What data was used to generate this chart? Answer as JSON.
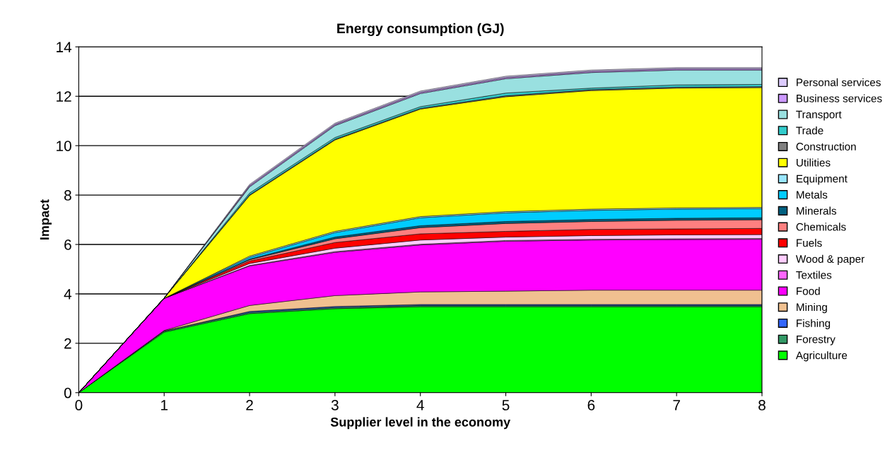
{
  "chart_data": {
    "type": "area",
    "stacked": true,
    "title": "Energy consumption (GJ)",
    "xlabel": "Supplier level in the economy",
    "ylabel": "Impact",
    "x": [
      0,
      1,
      2,
      3,
      4,
      5,
      6,
      7,
      8
    ],
    "xlim": [
      0,
      8
    ],
    "xticks": [
      0,
      1,
      2,
      3,
      4,
      5,
      6,
      7,
      8
    ],
    "ylim": [
      0,
      14
    ],
    "yticks": [
      0,
      2,
      4,
      6,
      8,
      10,
      12,
      14
    ],
    "grid": "y",
    "legend": "right",
    "series": [
      {
        "name": "Agriculture",
        "color": "#00ff00",
        "values": [
          0,
          2.45,
          3.2,
          3.4,
          3.48,
          3.48,
          3.48,
          3.48,
          3.48
        ]
      },
      {
        "name": "Forestry",
        "color": "#339966",
        "values": [
          0,
          0.05,
          0.05,
          0.05,
          0.05,
          0.05,
          0.05,
          0.05,
          0.05
        ]
      },
      {
        "name": "Fishing",
        "color": "#3366ff",
        "values": [
          0,
          0,
          0.04,
          0.04,
          0.04,
          0.04,
          0.04,
          0.04,
          0.04
        ]
      },
      {
        "name": "Mining",
        "color": "#f0c090",
        "values": [
          0,
          0.02,
          0.24,
          0.44,
          0.51,
          0.54,
          0.58,
          0.58,
          0.58
        ]
      },
      {
        "name": "Food",
        "color": "#ff00ff",
        "values": [
          0,
          1.3,
          1.6,
          1.75,
          1.9,
          2.02,
          2.03,
          2.05,
          2.06
        ]
      },
      {
        "name": "Textiles",
        "color": "#ff66ff",
        "values": [
          0,
          0,
          0.02,
          0.03,
          0.03,
          0.03,
          0.03,
          0.03,
          0.03
        ]
      },
      {
        "name": "Wood & paper",
        "color": "#ffccff",
        "values": [
          0,
          0,
          0.08,
          0.14,
          0.17,
          0.14,
          0.15,
          0.16,
          0.16
        ]
      },
      {
        "name": "Fuels",
        "color": "#ff0000",
        "values": [
          0,
          0,
          0.1,
          0.23,
          0.25,
          0.23,
          0.25,
          0.24,
          0.25
        ]
      },
      {
        "name": "Chemicals",
        "color": "#ff8080",
        "values": [
          0,
          0,
          0.05,
          0.15,
          0.25,
          0.32,
          0.32,
          0.35,
          0.35
        ]
      },
      {
        "name": "Minerals",
        "color": "#006080",
        "values": [
          0,
          0,
          0.03,
          0.07,
          0.08,
          0.08,
          0.08,
          0.08,
          0.08
        ]
      },
      {
        "name": "Metals",
        "color": "#00ccff",
        "values": [
          0,
          0,
          0.07,
          0.18,
          0.32,
          0.35,
          0.37,
          0.37,
          0.37
        ]
      },
      {
        "name": "Equipment",
        "color": "#99e6ff",
        "values": [
          0,
          0,
          0.05,
          0.05,
          0.05,
          0.05,
          0.05,
          0.05,
          0.05
        ]
      },
      {
        "name": "Utilities",
        "color": "#ffff00",
        "values": [
          0,
          0.01,
          2.45,
          3.7,
          4.35,
          4.65,
          4.8,
          4.85,
          4.85
        ]
      },
      {
        "name": "Construction",
        "color": "#808080",
        "values": [
          0,
          0,
          0.03,
          0.03,
          0.03,
          0.04,
          0.04,
          0.04,
          0.04
        ]
      },
      {
        "name": "Trade",
        "color": "#33cccc",
        "values": [
          0,
          0,
          0.07,
          0.07,
          0.07,
          0.11,
          0.06,
          0.09,
          0.09
        ]
      },
      {
        "name": "Transport",
        "color": "#99e0e0",
        "values": [
          0,
          0,
          0.25,
          0.48,
          0.53,
          0.58,
          0.63,
          0.6,
          0.58
        ]
      },
      {
        "name": "Business services",
        "color": "#cc99ff",
        "values": [
          0,
          0,
          0.05,
          0.05,
          0.05,
          0.05,
          0.05,
          0.05,
          0.05
        ]
      },
      {
        "name": "Personal services",
        "color": "#ddccff",
        "values": [
          0,
          0,
          0.05,
          0.05,
          0.05,
          0.05,
          0.05,
          0.05,
          0.05
        ]
      }
    ]
  }
}
